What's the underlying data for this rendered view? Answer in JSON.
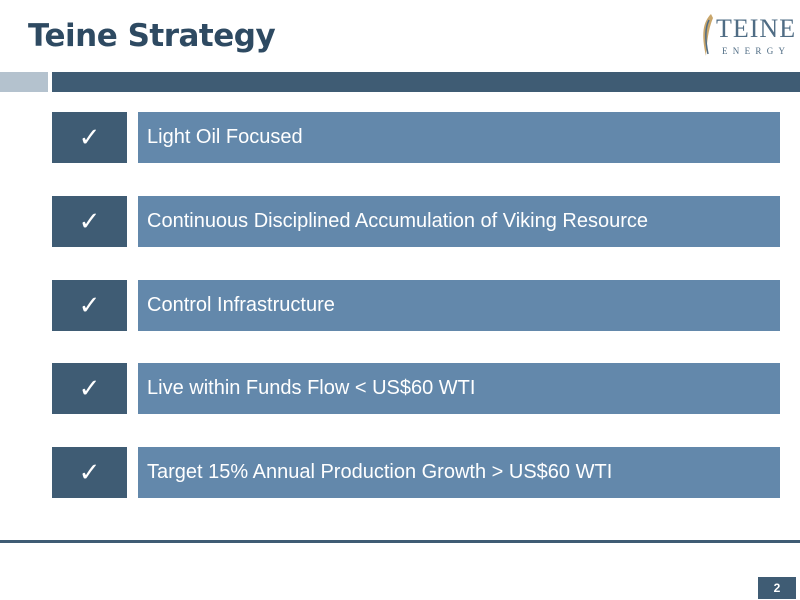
{
  "slide": {
    "title": "Teine Strategy",
    "page_number": "2"
  },
  "logo": {
    "word": "TEINE",
    "sub": "ENERGY"
  },
  "strategy_items": [
    {
      "check_glyph": "✓",
      "label": "Light Oil Focused"
    },
    {
      "check_glyph": "✓",
      "label": "Continuous Disciplined Accumulation of Viking Resource"
    },
    {
      "check_glyph": "✓",
      "label": "Control Infrastructure"
    },
    {
      "check_glyph": "✓",
      "label": "Live within Funds Flow < US$60 WTI"
    },
    {
      "check_glyph": "✓",
      "label": "Target 15% Annual Production Growth > US$60 WTI"
    }
  ],
  "colors": {
    "title": "#2e4a62",
    "dark_accent": "#3f5c74",
    "light_band": "#b4c2ce",
    "item_fill": "#6388ab"
  }
}
